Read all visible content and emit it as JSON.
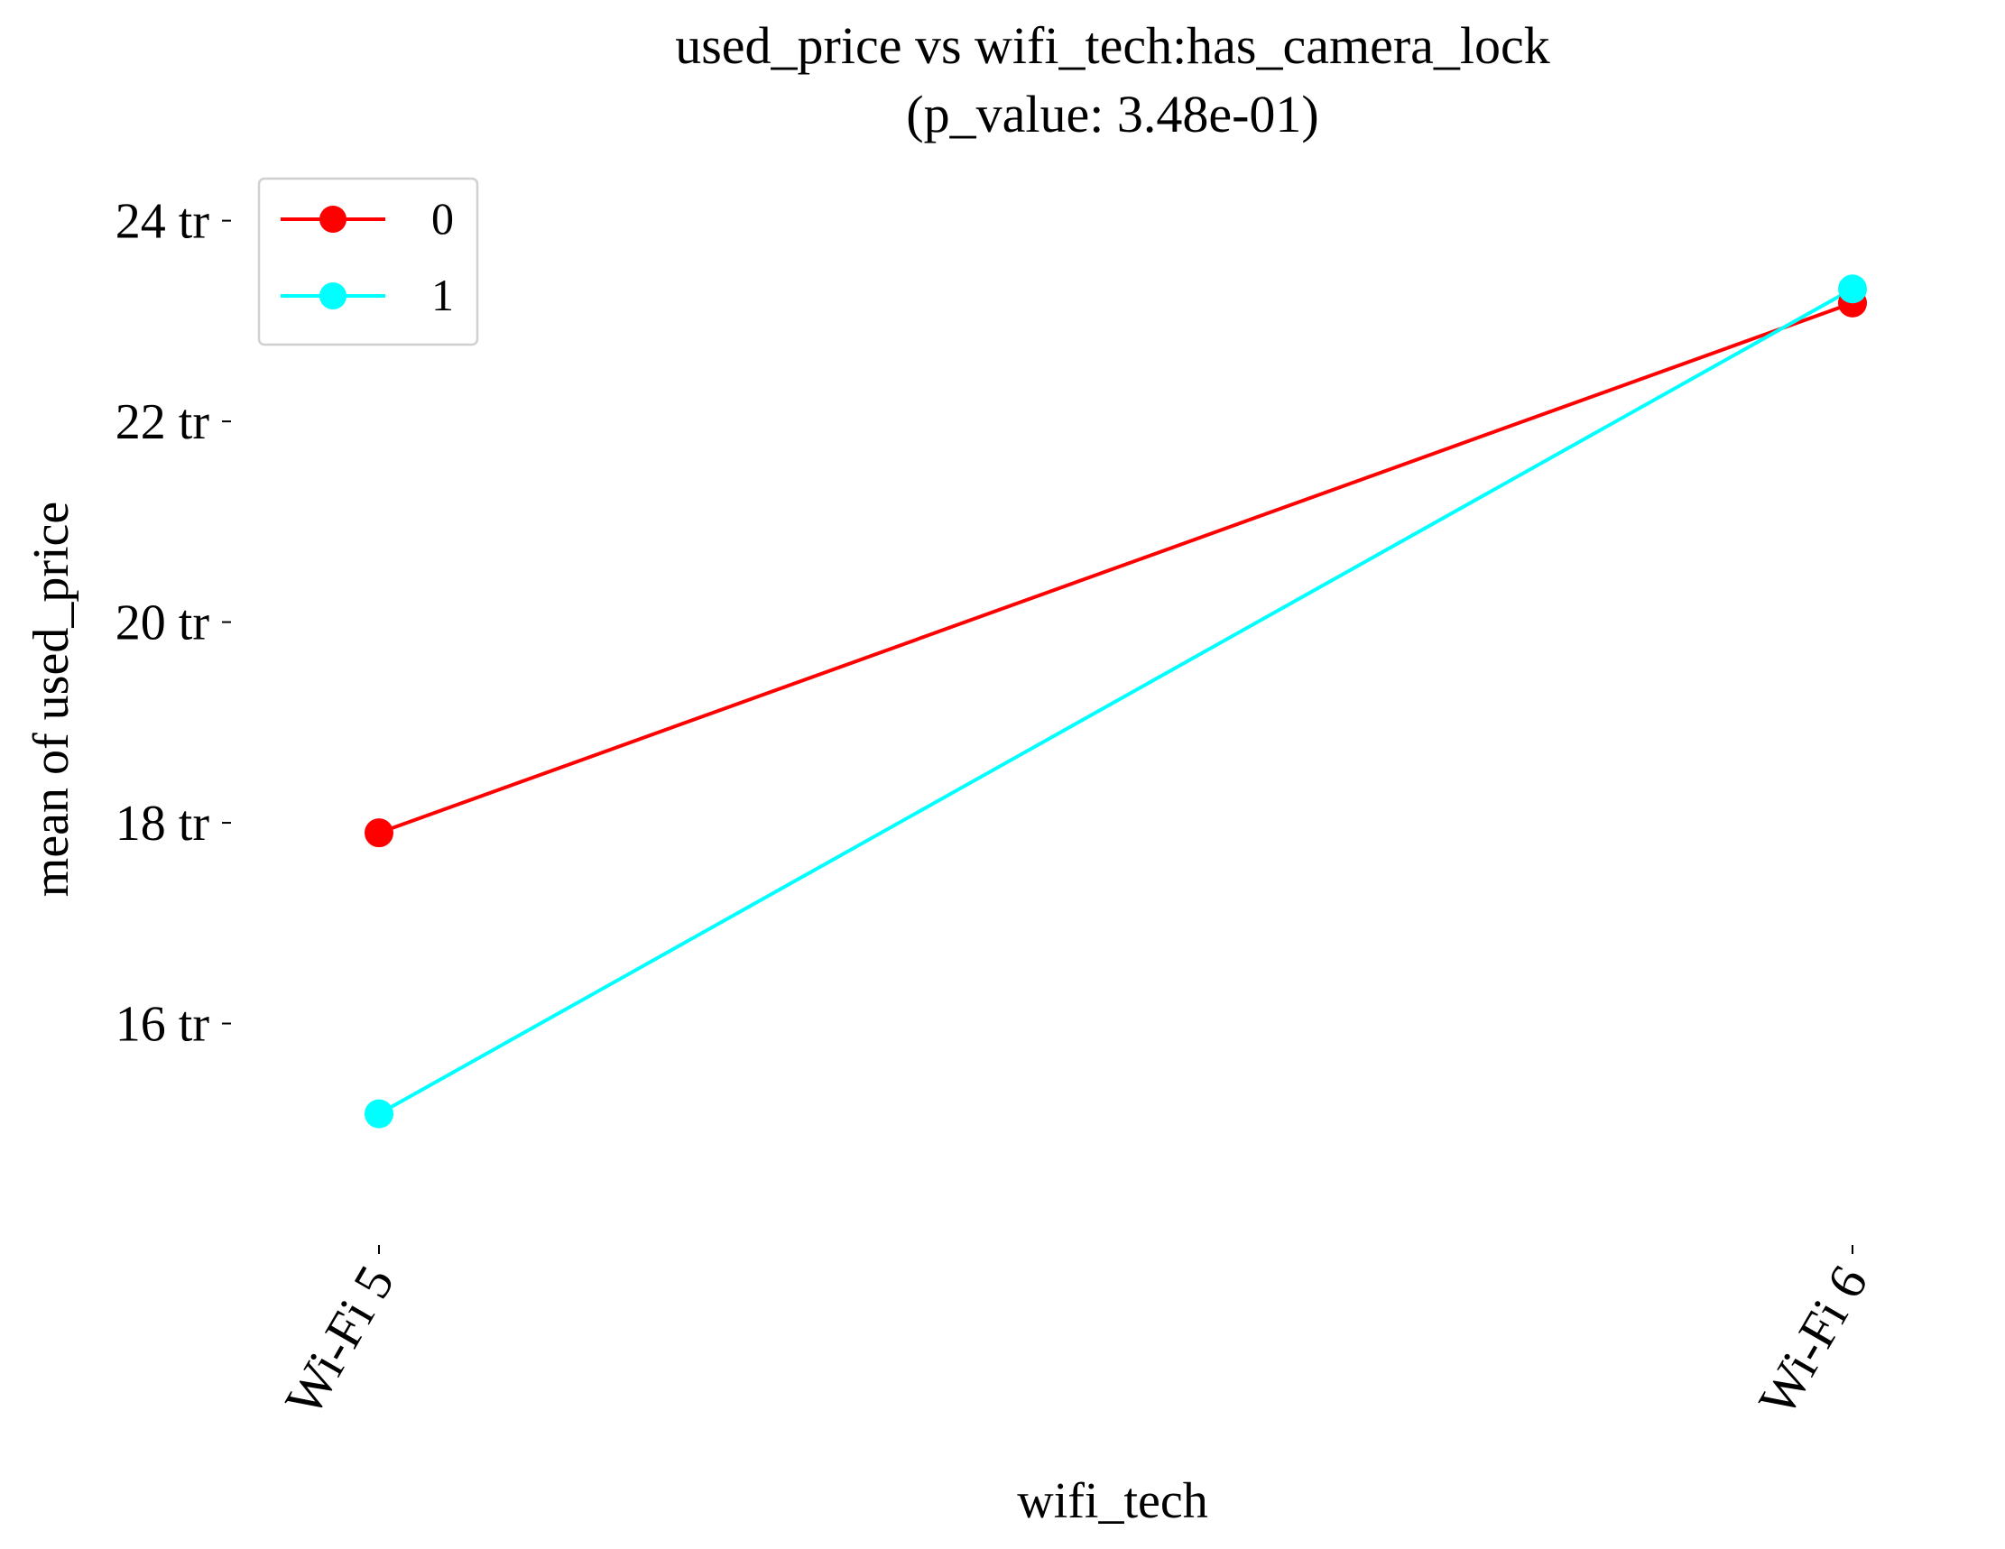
{
  "chart_data": {
    "type": "line",
    "title": "used_price vs wifi_tech:has_camera_lock",
    "subtitle": "(p_value: 3.48e-01)",
    "xlabel": "wifi_tech",
    "ylabel": "mean of used_price",
    "categories": [
      "Wi-Fi 5",
      "Wi-Fi 6"
    ],
    "y_ticks": [
      16,
      18,
      20,
      22,
      24
    ],
    "y_tick_labels": [
      "16 tr",
      "18 tr",
      "20 tr",
      "22 tr",
      "24 tr"
    ],
    "ylim": [
      14.0,
      24.5
    ],
    "grid": false,
    "legend_position": "top-left",
    "series": [
      {
        "name": "0",
        "color": "#ff0000",
        "values": [
          17.9,
          23.18
        ]
      },
      {
        "name": "1",
        "color": "#00ffff",
        "values": [
          15.1,
          23.32
        ]
      }
    ]
  }
}
